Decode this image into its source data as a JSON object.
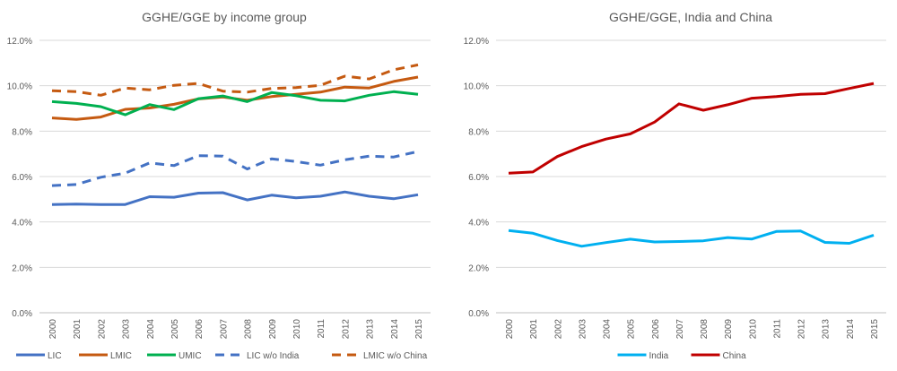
{
  "chart_data": [
    {
      "type": "line",
      "title": "GGHE/GGE by income group",
      "x": [
        "2000",
        "2001",
        "2002",
        "2003",
        "2004",
        "2005",
        "2006",
        "2007",
        "2008",
        "2009",
        "2010",
        "2011",
        "2012",
        "2013",
        "2014",
        "2015"
      ],
      "ylim": [
        0,
        12
      ],
      "yticks": [
        "0.0%",
        "2.0%",
        "4.0%",
        "6.0%",
        "8.0%",
        "10.0%",
        "12.0%"
      ],
      "grid": true,
      "legend": "bottom",
      "series": [
        {
          "name": "LIC",
          "color": "#4472C4",
          "dash": false,
          "values": [
            4.77,
            4.79,
            4.77,
            4.77,
            5.11,
            5.09,
            5.27,
            5.29,
            4.97,
            5.18,
            5.06,
            5.13,
            5.32,
            5.13,
            5.02,
            5.2
          ]
        },
        {
          "name": "LMIC",
          "color": "#C55A11",
          "dash": false,
          "values": [
            8.58,
            8.52,
            8.62,
            8.96,
            9.02,
            9.18,
            9.42,
            9.5,
            9.36,
            9.52,
            9.62,
            9.72,
            9.94,
            9.9,
            10.19,
            10.38
          ]
        },
        {
          "name": "UMIC",
          "color": "#00B050",
          "dash": false,
          "values": [
            9.3,
            9.22,
            9.08,
            8.72,
            9.17,
            8.95,
            9.43,
            9.55,
            9.3,
            9.7,
            9.56,
            9.36,
            9.33,
            9.58,
            9.74,
            9.62
          ]
        },
        {
          "name": "LIC w/o India",
          "color": "#4472C4",
          "dash": true,
          "values": [
            5.6,
            5.65,
            5.97,
            6.15,
            6.6,
            6.48,
            6.92,
            6.9,
            6.33,
            6.78,
            6.66,
            6.5,
            6.74,
            6.9,
            6.86,
            7.1
          ]
        },
        {
          "name": "LMIC w/o China",
          "color": "#C55A11",
          "dash": true,
          "values": [
            9.78,
            9.74,
            9.58,
            9.9,
            9.82,
            10.02,
            10.1,
            9.76,
            9.72,
            9.88,
            9.92,
            10.02,
            10.42,
            10.3,
            10.7,
            10.92
          ]
        }
      ]
    },
    {
      "type": "line",
      "title": "GGHE/GGE, India and China",
      "x": [
        "2000",
        "2001",
        "2002",
        "2003",
        "2004",
        "2005",
        "2006",
        "2007",
        "2008",
        "2009",
        "2010",
        "2011",
        "2012",
        "2013",
        "2014",
        "2015"
      ],
      "ylim": [
        0,
        12
      ],
      "yticks": [
        "0.0%",
        "2.0%",
        "4.0%",
        "6.0%",
        "8.0%",
        "10.0%",
        "12.0%"
      ],
      "grid": true,
      "legend": "bottom",
      "series": [
        {
          "name": "India",
          "color": "#00B0F0",
          "dash": false,
          "values": [
            3.62,
            3.5,
            3.18,
            2.93,
            3.09,
            3.24,
            3.12,
            3.14,
            3.17,
            3.31,
            3.25,
            3.58,
            3.6,
            3.1,
            3.06,
            3.42
          ]
        },
        {
          "name": "China",
          "color": "#C00000",
          "dash": false,
          "values": [
            6.15,
            6.2,
            6.88,
            7.32,
            7.65,
            7.88,
            8.4,
            9.2,
            8.92,
            9.16,
            9.45,
            9.52,
            9.62,
            9.65,
            9.88,
            10.1
          ]
        }
      ]
    }
  ]
}
